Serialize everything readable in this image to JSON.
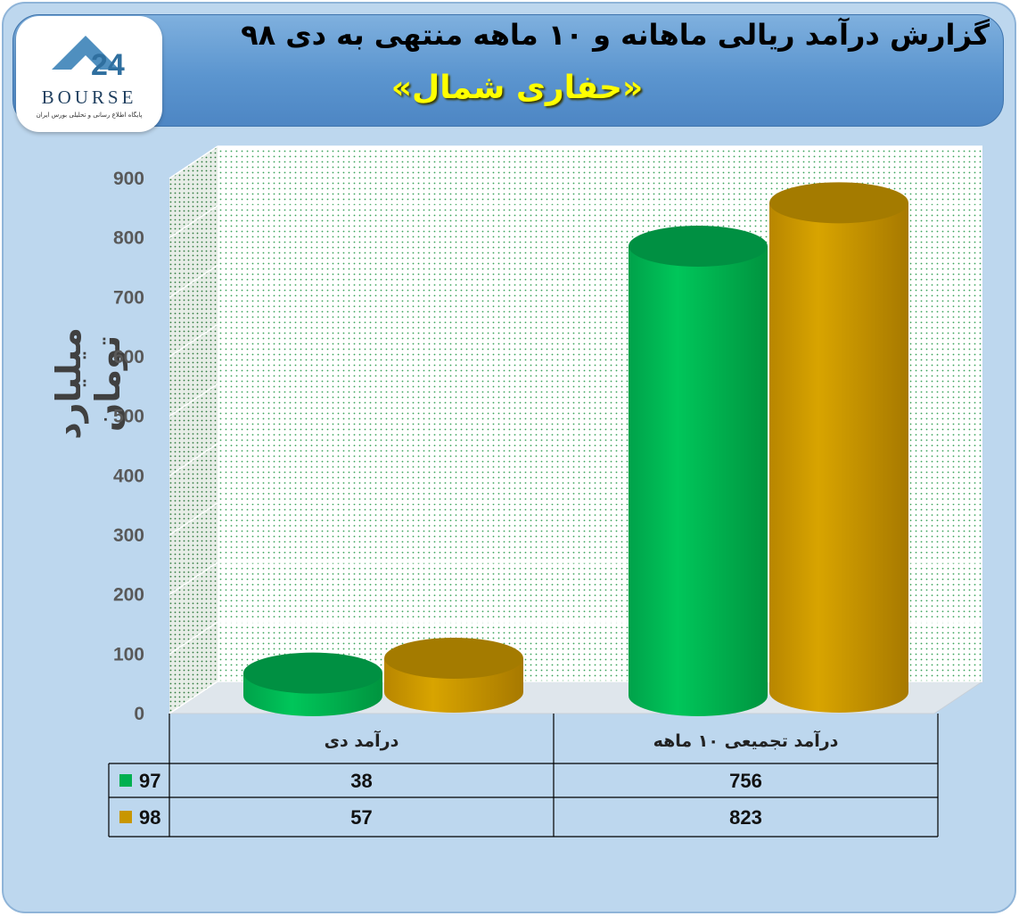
{
  "header": {
    "title": "گزارش درآمد ریالی ماهانه و ۱۰ ماهه منتهی به دی ۹۸",
    "subtitle": "«حفاری شمال»"
  },
  "logo": {
    "text": "BOURSE",
    "number": "24",
    "tagline": "پایگاه اطلاع رسانی و تحلیلی بورس ایران"
  },
  "colors": {
    "series_97": "#00b050",
    "series_98": "#c89600",
    "frame": "#bdd7ee",
    "banner": "#5b95cf",
    "subtitle": "#ffff00"
  },
  "chart_data": {
    "type": "bar",
    "title": "گزارش درآمد ریالی ماهانه و ۱۰ ماهه منتهی به دی ۹۸",
    "subtitle": "«حفاری شمال»",
    "ylabel": "میلیارد تومان",
    "xlabel": "",
    "ylim": [
      0,
      900
    ],
    "yticks": [
      "0",
      "100",
      "200",
      "300",
      "400",
      "500",
      "600",
      "700",
      "800",
      "900"
    ],
    "categories": [
      "درآمد دی",
      "درآمد تجمیعی ۱۰ ماهه"
    ],
    "series": [
      {
        "name": "97",
        "values": [
          38,
          756
        ],
        "color": "#00b050"
      },
      {
        "name": "98",
        "values": [
          57,
          823
        ],
        "color": "#c89600"
      }
    ],
    "grid": true,
    "legend": "data-table"
  }
}
